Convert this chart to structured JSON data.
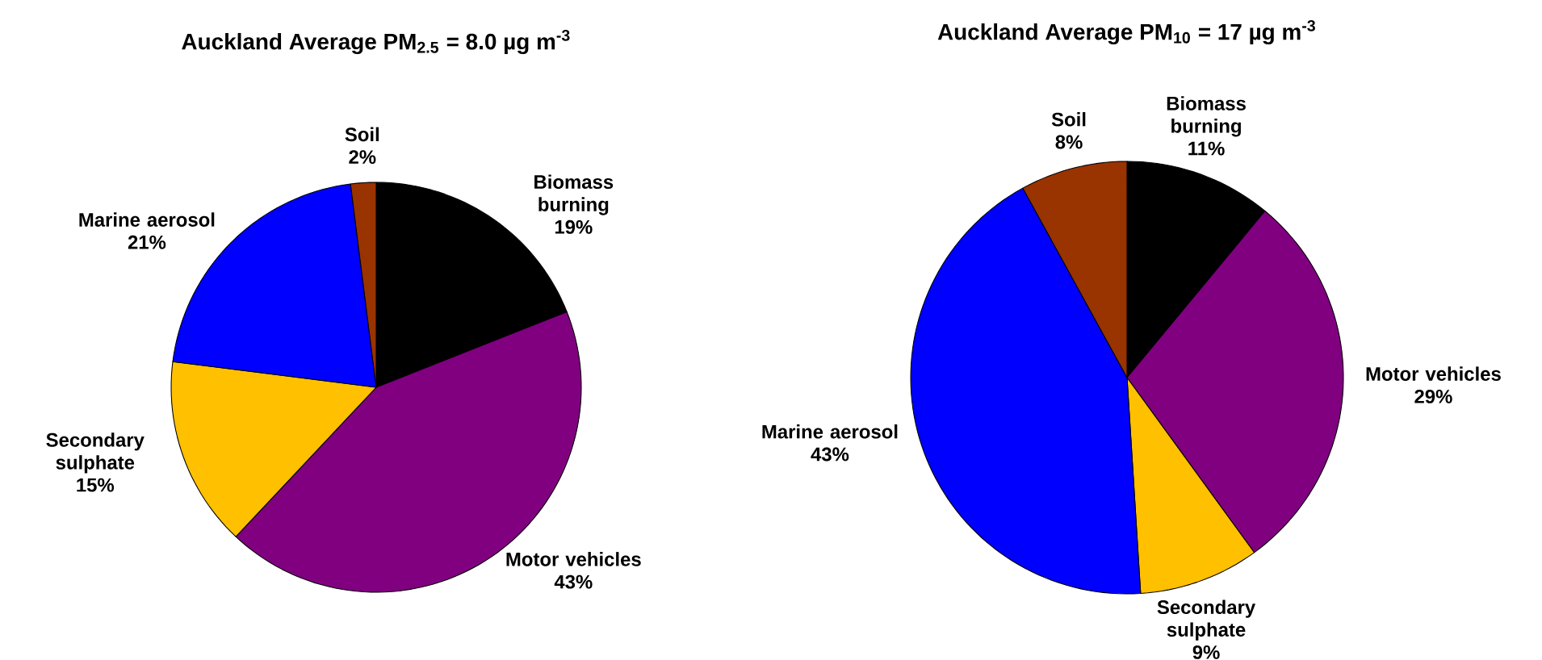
{
  "chart_data": [
    {
      "type": "pie",
      "title": "Auckland Average PM$_{2.5}$ = 8.0 µg m$^{-3}$",
      "categories": [
        "Biomass burning",
        "Motor vehicles",
        "Secondary sulphate",
        "Marine aerosol",
        "Soil"
      ],
      "values": [
        19,
        43,
        15,
        21,
        2
      ],
      "colors": [
        "#000000",
        "#800080",
        "#ffc000",
        "#0000ff",
        "#993300"
      ],
      "value_labels": [
        "19%",
        "43%",
        "15%",
        "21%",
        "2%"
      ]
    },
    {
      "type": "pie",
      "title": "Auckland Average PM$_{10}$ = 17 µg m$^{-3}$",
      "categories": [
        "Biomass burning",
        "Motor vehicles",
        "Secondary sulphate",
        "Marine aerosol",
        "Soil"
      ],
      "values": [
        11,
        29,
        9,
        43,
        8
      ],
      "colors": [
        "#000000",
        "#800080",
        "#ffc000",
        "#0000ff",
        "#993300"
      ],
      "value_labels": [
        "11%",
        "29%",
        "9%",
        "43%",
        "8%"
      ]
    }
  ]
}
